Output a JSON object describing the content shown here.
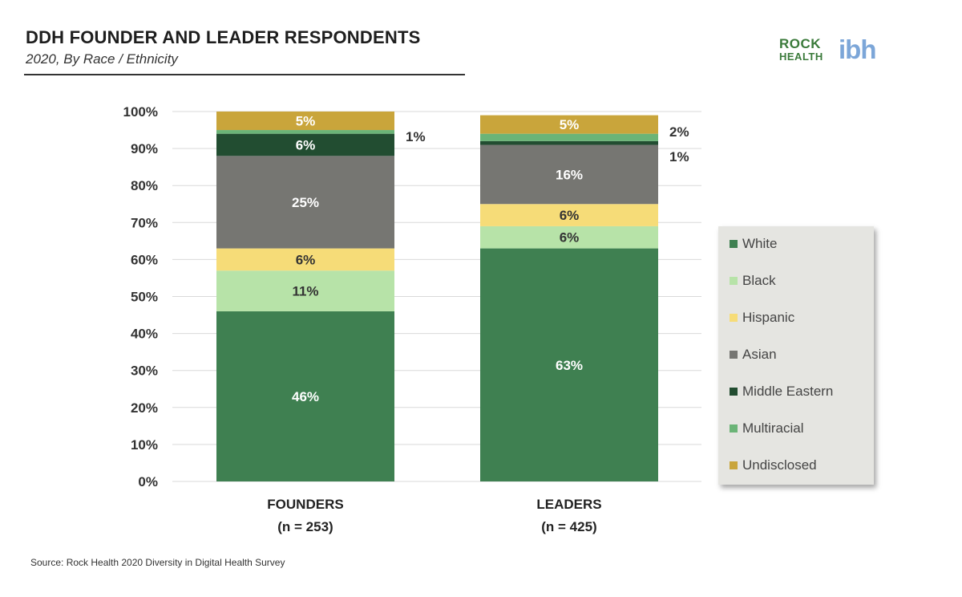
{
  "title": "DDH FOUNDER AND LEADER RESPONDENTS",
  "subtitle": "2020, By Race / Ethnicity",
  "logo": {
    "line1": "ROCK",
    "line2": "HEALTH",
    "mark": "ibh"
  },
  "source": "Source: Rock Health 2020 Diversity in Digital Health Survey",
  "colors": {
    "White": "#3f8051",
    "Black": "#b7e3a8",
    "Hispanic": "#f6dc78",
    "Asian": "#767672",
    "Middle Eastern": "#224d31",
    "Multiracial": "#6bb477",
    "Undisclosed": "#c9a53b"
  },
  "legend": [
    "White",
    "Black",
    "Hispanic",
    "Asian",
    "Middle Eastern",
    "Multiracial",
    "Undisclosed"
  ],
  "chart_data": {
    "type": "bar",
    "stacked": true,
    "categories": [
      "FOUNDERS",
      "LEADERS"
    ],
    "category_notes": [
      "(n = 253)",
      "(n = 425)"
    ],
    "series": [
      {
        "name": "White",
        "values": [
          46,
          63
        ],
        "labels": [
          "46%",
          "63%"
        ]
      },
      {
        "name": "Black",
        "values": [
          11,
          6
        ],
        "labels": [
          "11%",
          "6%"
        ]
      },
      {
        "name": "Hispanic",
        "values": [
          6,
          6
        ],
        "labels": [
          "6%",
          "6%"
        ]
      },
      {
        "name": "Asian",
        "values": [
          25,
          16
        ],
        "labels": [
          "25%",
          "16%"
        ]
      },
      {
        "name": "Middle Eastern",
        "values": [
          6,
          1
        ],
        "labels": [
          "6%",
          "1%"
        ]
      },
      {
        "name": "Multiracial",
        "values": [
          1,
          2
        ],
        "labels": [
          "1%",
          "2%"
        ]
      },
      {
        "name": "Undisclosed",
        "values": [
          5,
          5
        ],
        "labels": [
          "5%",
          "5%"
        ]
      }
    ],
    "ylim": [
      0,
      100
    ],
    "yticks": [
      "0%",
      "10%",
      "20%",
      "30%",
      "40%",
      "50%",
      "60%",
      "70%",
      "80%",
      "90%",
      "100%"
    ],
    "grid": true,
    "legend_position": "right"
  }
}
